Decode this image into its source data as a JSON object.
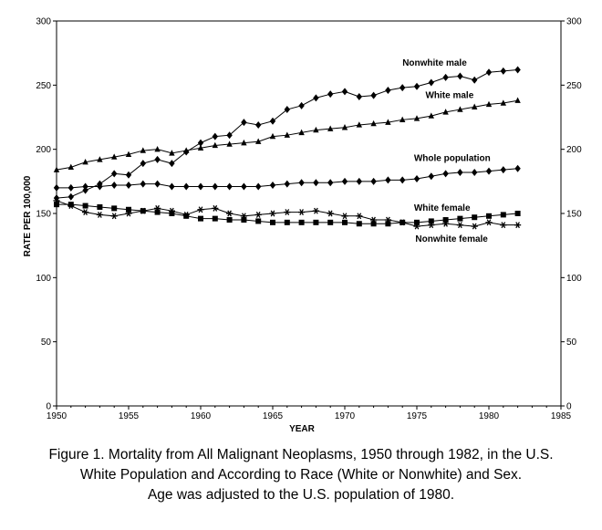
{
  "chart_data": {
    "type": "line",
    "title": "",
    "xlabel": "YEAR",
    "ylabel": "RATE PER 100,000",
    "xlim": [
      1950,
      1985
    ],
    "ylim": [
      0,
      300
    ],
    "x_ticks": [
      "1950",
      "1955",
      "1960",
      "1965",
      "1970",
      "1975",
      "1980",
      "1985"
    ],
    "y_ticks": [
      "0",
      "50",
      "100",
      "150",
      "200",
      "250",
      "300"
    ],
    "x": [
      1950,
      1951,
      1952,
      1953,
      1954,
      1955,
      1956,
      1957,
      1958,
      1959,
      1960,
      1961,
      1962,
      1963,
      1964,
      1965,
      1966,
      1967,
      1968,
      1969,
      1970,
      1971,
      1972,
      1973,
      1974,
      1975,
      1976,
      1977,
      1978,
      1979,
      1980,
      1981,
      1982
    ],
    "series": [
      {
        "name": "Nonwhite male",
        "marker": "diamond",
        "values": [
          162,
          163,
          168,
          173,
          181,
          180,
          189,
          192,
          189,
          198,
          205,
          210,
          211,
          221,
          219,
          222,
          231,
          234,
          240,
          243,
          245,
          241,
          242,
          246,
          248,
          249,
          252,
          256,
          257,
          254,
          260,
          261,
          262
        ]
      },
      {
        "name": "White male",
        "marker": "triangle",
        "values": [
          184,
          186,
          190,
          192,
          194,
          196,
          199,
          200,
          197,
          199,
          201,
          203,
          204,
          205,
          206,
          210,
          211,
          213,
          215,
          216,
          217,
          219,
          220,
          221,
          223,
          224,
          226,
          229,
          231,
          233,
          235,
          236,
          238
        ]
      },
      {
        "name": "Whole population",
        "marker": "diamond",
        "values": [
          170,
          170,
          171,
          171,
          172,
          172,
          173,
          173,
          171,
          171,
          171,
          171,
          171,
          171,
          171,
          172,
          173,
          174,
          174,
          174,
          175,
          175,
          175,
          176,
          176,
          177,
          179,
          181,
          182,
          182,
          183,
          184,
          185
        ]
      },
      {
        "name": "White female",
        "marker": "square",
        "values": [
          157,
          157,
          156,
          155,
          154,
          153,
          152,
          151,
          150,
          148,
          146,
          146,
          145,
          145,
          144,
          143,
          143,
          143,
          143,
          143,
          143,
          142,
          142,
          142,
          143,
          143,
          144,
          145,
          146,
          147,
          148,
          149,
          150
        ]
      },
      {
        "name": "Nonwhite female",
        "marker": "star",
        "values": [
          160,
          156,
          151,
          149,
          148,
          150,
          152,
          154,
          152,
          149,
          153,
          154,
          150,
          148,
          149,
          150,
          151,
          151,
          152,
          150,
          148,
          148,
          145,
          145,
          143,
          140,
          141,
          142,
          141,
          140,
          143,
          141,
          141
        ]
      }
    ],
    "annotations": [
      "Nonwhite male",
      "White male",
      "Whole population",
      "White female",
      "Nonwhite female"
    ],
    "grid": false,
    "right_axis": true
  },
  "caption": {
    "line1": "Figure 1. Mortality from All Malignant Neoplasms, 1950 through 1982, in the U.S.",
    "line2": "White Population and According to Race (White or Nonwhite) and Sex.",
    "line3": "Age was adjusted to the U.S. population of 1980."
  }
}
